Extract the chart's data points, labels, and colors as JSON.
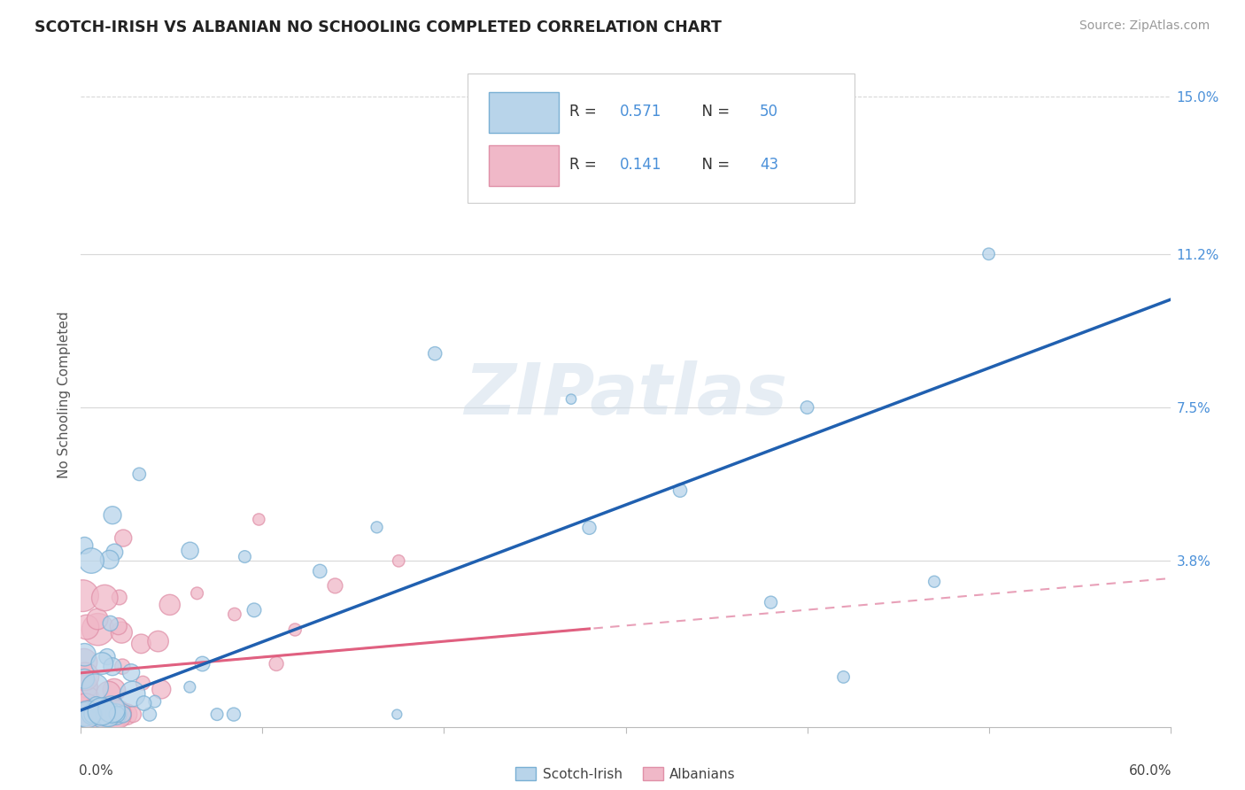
{
  "title": "SCOTCH-IRISH VS ALBANIAN NO SCHOOLING COMPLETED CORRELATION CHART",
  "source_text": "Source: ZipAtlas.com",
  "ylabel": "No Schooling Completed",
  "yticks_right": [
    0.0,
    0.038,
    0.075,
    0.112,
    0.15
  ],
  "ytick_labels_right": [
    "",
    "3.8%",
    "7.5%",
    "11.2%",
    "15.0%"
  ],
  "xlim": [
    0.0,
    0.6
  ],
  "ylim": [
    -0.002,
    0.158
  ],
  "watermark": "ZIPatlas",
  "color_blue_fill": "#b8d4ea",
  "color_blue_edge": "#7ab0d4",
  "color_blue_line": "#2060b0",
  "color_pink_fill": "#f0b8c8",
  "color_pink_edge": "#e090a8",
  "color_pink_line": "#e06080",
  "color_pink_dash": "#e8a0b8",
  "background_color": "#ffffff",
  "grid_color": "#d8d8d8",
  "title_color": "#222222",
  "source_color": "#999999",
  "ytick_color": "#4a90d9",
  "legend_text_color_label": "#333333",
  "legend_text_color_value": "#4a90d9"
}
